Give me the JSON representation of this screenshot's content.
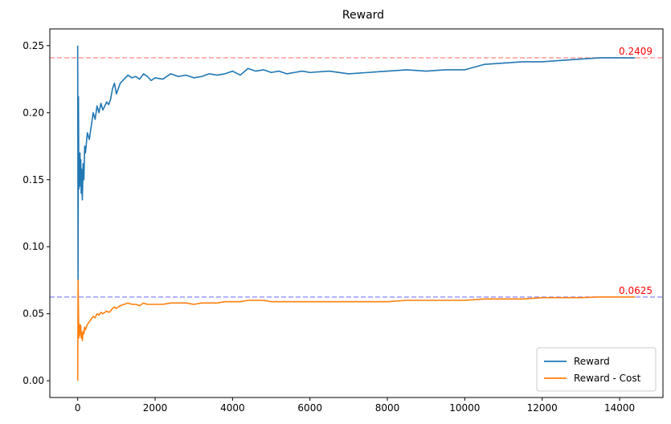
{
  "chart_data": {
    "type": "line",
    "title": "Reward",
    "xlabel": "",
    "ylabel": "",
    "xlim": [
      -720,
      15120
    ],
    "ylim": [
      -0.0125,
      0.2625
    ],
    "x_ticks": [
      0,
      2000,
      4000,
      6000,
      8000,
      10000,
      12000,
      14000
    ],
    "x_tick_labels": [
      "0",
      "2000",
      "4000",
      "6000",
      "8000",
      "10000",
      "12000",
      "14000"
    ],
    "y_ticks": [
      0.0,
      0.05,
      0.1,
      0.15,
      0.2,
      0.25
    ],
    "y_tick_labels": [
      "0.00",
      "0.05",
      "0.10",
      "0.15",
      "0.20",
      "0.25"
    ],
    "grid": false,
    "legend_position": "lower right",
    "series": [
      {
        "name": "Reward",
        "color": "#1f77b4",
        "x": [
          0,
          10,
          20,
          30,
          40,
          50,
          60,
          70,
          80,
          90,
          100,
          120,
          140,
          160,
          180,
          200,
          250,
          300,
          350,
          400,
          450,
          500,
          550,
          600,
          650,
          700,
          750,
          800,
          850,
          900,
          950,
          1000,
          1100,
          1200,
          1300,
          1400,
          1500,
          1600,
          1700,
          1800,
          1900,
          2000,
          2200,
          2400,
          2600,
          2800,
          3000,
          3200,
          3400,
          3600,
          3800,
          4000,
          4200,
          4400,
          4600,
          4800,
          5000,
          5200,
          5400,
          5600,
          5800,
          6000,
          6500,
          7000,
          7500,
          8000,
          8500,
          9000,
          9500,
          10000,
          10500,
          11000,
          11500,
          12000,
          12500,
          13000,
          13500,
          14000,
          14400
        ],
        "y": [
          0.25,
          0.075,
          0.212,
          0.143,
          0.168,
          0.145,
          0.17,
          0.15,
          0.165,
          0.14,
          0.158,
          0.135,
          0.162,
          0.15,
          0.175,
          0.17,
          0.185,
          0.18,
          0.19,
          0.2,
          0.195,
          0.205,
          0.2,
          0.207,
          0.202,
          0.205,
          0.208,
          0.206,
          0.21,
          0.218,
          0.222,
          0.214,
          0.222,
          0.225,
          0.228,
          0.226,
          0.227,
          0.225,
          0.229,
          0.227,
          0.224,
          0.226,
          0.225,
          0.229,
          0.227,
          0.228,
          0.226,
          0.227,
          0.229,
          0.228,
          0.229,
          0.231,
          0.228,
          0.233,
          0.231,
          0.232,
          0.23,
          0.231,
          0.229,
          0.23,
          0.231,
          0.23,
          0.231,
          0.229,
          0.23,
          0.231,
          0.232,
          0.231,
          0.232,
          0.232,
          0.236,
          0.237,
          0.238,
          0.238,
          0.239,
          0.24,
          0.241,
          0.241,
          0.2409
        ]
      },
      {
        "name": "Reward - Cost",
        "color": "#ff7f0e",
        "x": [
          0,
          10,
          20,
          30,
          40,
          50,
          60,
          70,
          80,
          90,
          100,
          120,
          140,
          160,
          180,
          200,
          250,
          300,
          350,
          400,
          450,
          500,
          550,
          600,
          650,
          700,
          750,
          800,
          850,
          900,
          950,
          1000,
          1100,
          1200,
          1300,
          1400,
          1500,
          1600,
          1700,
          1800,
          1900,
          2000,
          2200,
          2400,
          2600,
          2800,
          3000,
          3200,
          3400,
          3600,
          3800,
          4000,
          4200,
          4400,
          4600,
          4800,
          5000,
          5200,
          5400,
          5600,
          5800,
          6000,
          6500,
          7000,
          7500,
          8000,
          8500,
          9000,
          9500,
          10000,
          10500,
          11000,
          11500,
          12000,
          12500,
          13000,
          13500,
          14000,
          14400
        ],
        "y": [
          0.0,
          0.075,
          0.053,
          0.032,
          0.04,
          0.034,
          0.042,
          0.037,
          0.041,
          0.032,
          0.036,
          0.03,
          0.037,
          0.035,
          0.04,
          0.038,
          0.042,
          0.044,
          0.046,
          0.048,
          0.047,
          0.05,
          0.049,
          0.051,
          0.05,
          0.051,
          0.052,
          0.051,
          0.052,
          0.054,
          0.055,
          0.054,
          0.056,
          0.057,
          0.058,
          0.057,
          0.057,
          0.056,
          0.058,
          0.057,
          0.057,
          0.057,
          0.057,
          0.058,
          0.058,
          0.058,
          0.057,
          0.058,
          0.058,
          0.058,
          0.059,
          0.059,
          0.059,
          0.06,
          0.06,
          0.06,
          0.059,
          0.059,
          0.059,
          0.059,
          0.059,
          0.059,
          0.059,
          0.059,
          0.059,
          0.059,
          0.06,
          0.06,
          0.06,
          0.06,
          0.061,
          0.061,
          0.061,
          0.062,
          0.062,
          0.062,
          0.0625,
          0.0625,
          0.0625
        ]
      }
    ],
    "reference_lines": [
      {
        "y": 0.2409,
        "label": "0.2409",
        "line_color": "#ff9999",
        "label_color": "#ff0000"
      },
      {
        "y": 0.0625,
        "label": "0.0625",
        "line_color": "#9999ff",
        "label_color": "#ff0000"
      }
    ],
    "annotation_x": 14000
  }
}
